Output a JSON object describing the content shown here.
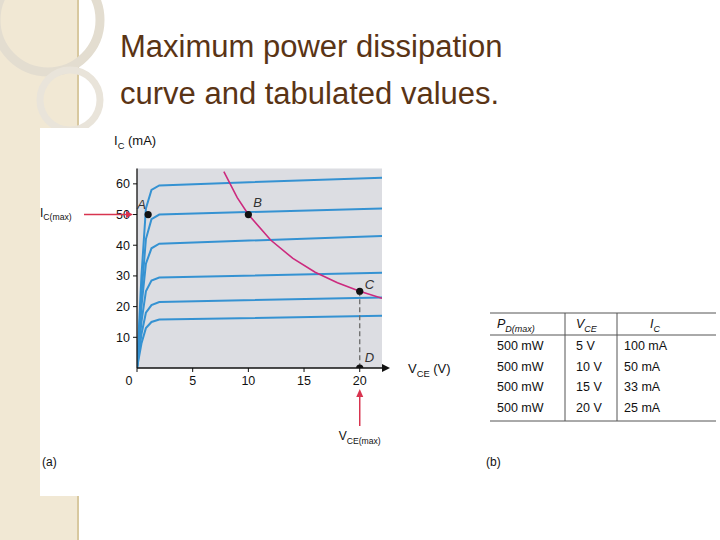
{
  "title": [
    "Maximum power dissipation",
    "curve and tabulated values."
  ],
  "chart_data": {
    "type": "line",
    "ylabel": "IC (mA)",
    "xlabel": "VCE (V)",
    "xlim": [
      0,
      22
    ],
    "ylim": [
      0,
      65
    ],
    "xticks": [
      0,
      5,
      10,
      15,
      20
    ],
    "yticks": [
      10,
      20,
      30,
      40,
      50,
      60
    ],
    "grid": false,
    "series": [
      {
        "color": "#3592d2",
        "x": [
          0,
          0.4,
          0.8,
          1.3,
          2,
          22
        ],
        "values": [
          0,
          30,
          52,
          58,
          59.5,
          62
        ]
      },
      {
        "color": "#3592d2",
        "x": [
          0,
          0.4,
          0.8,
          1.3,
          2,
          22
        ],
        "values": [
          0,
          24,
          42,
          48.5,
          50,
          52
        ]
      },
      {
        "color": "#3592d2",
        "x": [
          0,
          0.4,
          0.8,
          1.3,
          2,
          22
        ],
        "values": [
          0,
          20,
          34,
          39,
          40.5,
          43
        ]
      },
      {
        "color": "#3592d2",
        "x": [
          0,
          0.4,
          0.8,
          1.3,
          2,
          22
        ],
        "values": [
          0,
          15,
          25,
          28.5,
          29.5,
          31
        ]
      },
      {
        "color": "#3592d2",
        "x": [
          0,
          0.4,
          0.8,
          1.3,
          2,
          22
        ],
        "values": [
          0,
          11,
          18,
          20.5,
          21.5,
          23
        ]
      },
      {
        "color": "#3592d2",
        "x": [
          0,
          0.4,
          0.8,
          1.3,
          2,
          22
        ],
        "values": [
          0,
          8,
          13,
          15,
          15.8,
          17
        ]
      },
      {
        "color": "#cc2a7e",
        "x": [
          7.8,
          9,
          10,
          12,
          14,
          16,
          18,
          20,
          22
        ],
        "values": [
          64,
          55.5,
          50,
          41.7,
          35.7,
          31.2,
          27.8,
          25,
          22.7
        ]
      }
    ],
    "points": [
      {
        "label": "A",
        "x": 1,
        "y": 50
      },
      {
        "label": "B",
        "x": 10,
        "y": 50
      },
      {
        "label": "C",
        "x": 20,
        "y": 25
      },
      {
        "label": "D",
        "x": 20,
        "y": 0
      }
    ],
    "marker": "circle",
    "annotations": [
      {
        "text": "IC(max)",
        "y": 50,
        "color": "#d8344f"
      },
      {
        "text": "VCE(max)",
        "x": 20,
        "color": "#d8344f"
      }
    ]
  },
  "table": {
    "header": [
      "PD(max)",
      "VCE",
      "IC"
    ],
    "rows": [
      [
        "500 mW",
        "5 V",
        "100 mA"
      ],
      [
        "500 mW",
        "10 V",
        "50 mA"
      ],
      [
        "500 mW",
        "15 V",
        "33 mA"
      ],
      [
        "500 mW",
        "20 V",
        "25 mA"
      ]
    ]
  },
  "panel_labels": [
    "(a)",
    "(b)"
  ]
}
